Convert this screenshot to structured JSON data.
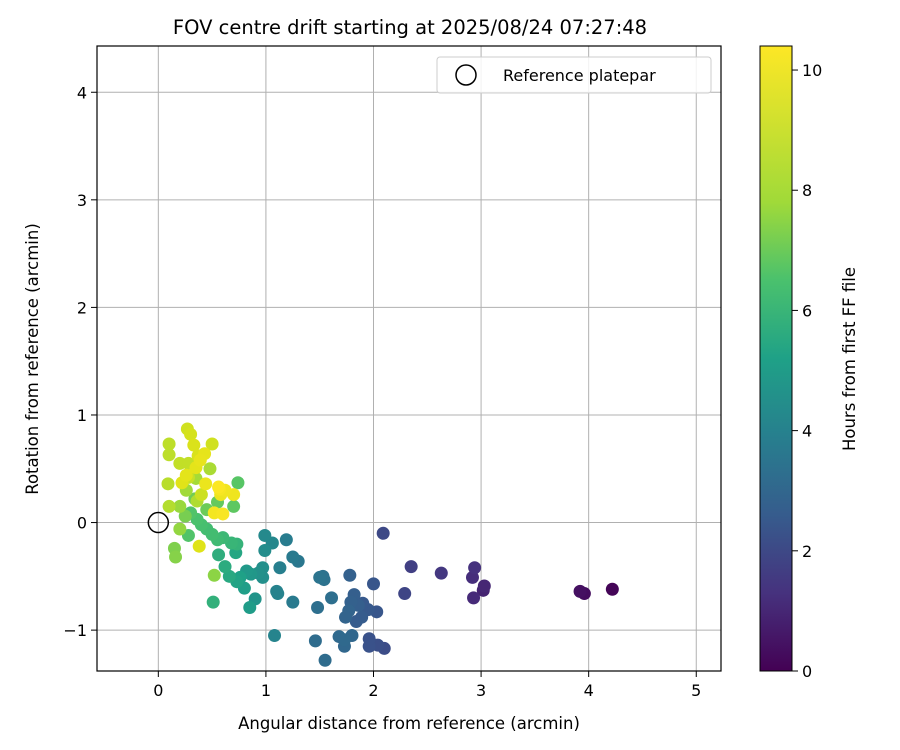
{
  "chart_data": {
    "type": "scatter",
    "title": "FOV centre drift starting at 2025/08/24 07:27:48",
    "xlabel": "Angular distance from reference (arcmin)",
    "ylabel": "Rotation from reference (arcmin)",
    "xlim": [
      -0.57,
      5.23
    ],
    "ylim": [
      -1.38,
      4.43
    ],
    "xticks": [
      0,
      1,
      2,
      3,
      4,
      5
    ],
    "yticks": [
      -1,
      0,
      1,
      2,
      3,
      4
    ],
    "xtick_labels": [
      "0",
      "1",
      "2",
      "3",
      "4",
      "5"
    ],
    "ytick_labels": [
      "−1",
      "0",
      "1",
      "2",
      "3",
      "4"
    ],
    "grid": true,
    "legend": {
      "label": "Reference platepar",
      "placement": "top-right",
      "marker": "open-circle"
    },
    "reference_point": {
      "x": 0,
      "y": 0
    },
    "colorbar": {
      "label": "Hours from first FF file",
      "range": [
        0,
        10.4
      ],
      "ticks": [
        0,
        2,
        4,
        6,
        8,
        10
      ],
      "tick_labels": [
        "0",
        "2",
        "4",
        "6",
        "8",
        "10"
      ],
      "colormap": "viridis"
    },
    "points": [
      {
        "x": 4.22,
        "y": -0.62,
        "c": 0.1
      },
      {
        "x": 3.96,
        "y": -0.66,
        "c": 0.3
      },
      {
        "x": 3.92,
        "y": -0.64,
        "c": 0.4
      },
      {
        "x": 3.02,
        "y": -0.63,
        "c": 0.9
      },
      {
        "x": 3.03,
        "y": -0.59,
        "c": 1.0
      },
      {
        "x": 2.93,
        "y": -0.7,
        "c": 1.1
      },
      {
        "x": 2.92,
        "y": -0.51,
        "c": 1.2
      },
      {
        "x": 2.94,
        "y": -0.42,
        "c": 1.3
      },
      {
        "x": 2.63,
        "y": -0.47,
        "c": 1.5
      },
      {
        "x": 2.35,
        "y": -0.41,
        "c": 1.7
      },
      {
        "x": 2.29,
        "y": -0.66,
        "c": 1.9
      },
      {
        "x": 2.09,
        "y": -0.1,
        "c": 2.0
      },
      {
        "x": 2.1,
        "y": -1.17,
        "c": 2.1
      },
      {
        "x": 2.04,
        "y": -1.14,
        "c": 2.2
      },
      {
        "x": 1.96,
        "y": -1.15,
        "c": 2.3
      },
      {
        "x": 1.96,
        "y": -1.08,
        "c": 2.3
      },
      {
        "x": 2.0,
        "y": -0.57,
        "c": 2.4
      },
      {
        "x": 2.03,
        "y": -0.83,
        "c": 2.4
      },
      {
        "x": 1.95,
        "y": -0.81,
        "c": 2.5
      },
      {
        "x": 1.9,
        "y": -0.75,
        "c": 2.5
      },
      {
        "x": 1.89,
        "y": -0.88,
        "c": 2.6
      },
      {
        "x": 1.84,
        "y": -0.92,
        "c": 2.6
      },
      {
        "x": 1.86,
        "y": -0.77,
        "c": 2.7
      },
      {
        "x": 1.82,
        "y": -0.67,
        "c": 2.7
      },
      {
        "x": 1.79,
        "y": -0.74,
        "c": 2.8
      },
      {
        "x": 1.78,
        "y": -0.49,
        "c": 2.8
      },
      {
        "x": 1.77,
        "y": -0.82,
        "c": 2.9
      },
      {
        "x": 1.74,
        "y": -0.88,
        "c": 2.9
      },
      {
        "x": 1.8,
        "y": -1.05,
        "c": 3.0
      },
      {
        "x": 1.73,
        "y": -1.15,
        "c": 3.0
      },
      {
        "x": 1.68,
        "y": -1.06,
        "c": 3.1
      },
      {
        "x": 1.73,
        "y": -1.09,
        "c": 3.1
      },
      {
        "x": 1.55,
        "y": -1.28,
        "c": 3.2
      },
      {
        "x": 1.46,
        "y": -1.1,
        "c": 3.2
      },
      {
        "x": 1.48,
        "y": -0.79,
        "c": 3.3
      },
      {
        "x": 1.61,
        "y": -0.7,
        "c": 3.3
      },
      {
        "x": 1.54,
        "y": -0.53,
        "c": 3.4
      },
      {
        "x": 1.53,
        "y": -0.5,
        "c": 3.4
      },
      {
        "x": 1.5,
        "y": -0.51,
        "c": 3.5
      },
      {
        "x": 1.3,
        "y": -0.36,
        "c": 3.6
      },
      {
        "x": 1.25,
        "y": -0.32,
        "c": 3.7
      },
      {
        "x": 1.25,
        "y": -0.74,
        "c": 3.7
      },
      {
        "x": 1.19,
        "y": -0.16,
        "c": 3.8
      },
      {
        "x": 1.13,
        "y": -0.42,
        "c": 3.9
      },
      {
        "x": 1.1,
        "y": -0.64,
        "c": 4.0
      },
      {
        "x": 1.11,
        "y": -0.66,
        "c": 4.0
      },
      {
        "x": 1.08,
        "y": -1.05,
        "c": 4.1
      },
      {
        "x": 1.06,
        "y": -0.19,
        "c": 4.2
      },
      {
        "x": 0.99,
        "y": -0.12,
        "c": 4.3
      },
      {
        "x": 0.99,
        "y": -0.26,
        "c": 4.4
      },
      {
        "x": 0.97,
        "y": -0.42,
        "c": 4.5
      },
      {
        "x": 0.97,
        "y": -0.51,
        "c": 4.5
      },
      {
        "x": 0.93,
        "y": -0.47,
        "c": 4.6
      },
      {
        "x": 0.9,
        "y": -0.71,
        "c": 4.7
      },
      {
        "x": 0.86,
        "y": -0.48,
        "c": 4.8
      },
      {
        "x": 0.82,
        "y": -0.45,
        "c": 4.9
      },
      {
        "x": 0.85,
        "y": -0.79,
        "c": 5.0
      },
      {
        "x": 0.8,
        "y": -0.61,
        "c": 5.1
      },
      {
        "x": 0.76,
        "y": -0.51,
        "c": 5.2
      },
      {
        "x": 0.73,
        "y": -0.55,
        "c": 5.3
      },
      {
        "x": 0.72,
        "y": -0.28,
        "c": 5.4
      },
      {
        "x": 0.66,
        "y": -0.5,
        "c": 5.5
      },
      {
        "x": 0.62,
        "y": -0.41,
        "c": 5.6
      },
      {
        "x": 0.56,
        "y": -0.3,
        "c": 5.7
      },
      {
        "x": 0.51,
        "y": -0.74,
        "c": 5.8
      },
      {
        "x": 0.73,
        "y": -0.2,
        "c": 5.9
      },
      {
        "x": 0.68,
        "y": -0.19,
        "c": 6.0
      },
      {
        "x": 0.6,
        "y": -0.14,
        "c": 6.1
      },
      {
        "x": 0.55,
        "y": -0.16,
        "c": 6.2
      },
      {
        "x": 0.5,
        "y": -0.11,
        "c": 6.3
      },
      {
        "x": 0.45,
        "y": -0.06,
        "c": 6.3
      },
      {
        "x": 0.4,
        "y": -0.02,
        "c": 6.4
      },
      {
        "x": 0.36,
        "y": 0.03,
        "c": 6.5
      },
      {
        "x": 0.3,
        "y": 0.09,
        "c": 6.6
      },
      {
        "x": 0.28,
        "y": -0.12,
        "c": 6.6
      },
      {
        "x": 0.74,
        "y": 0.37,
        "c": 6.7
      },
      {
        "x": 0.7,
        "y": 0.15,
        "c": 6.8
      },
      {
        "x": 0.55,
        "y": 0.19,
        "c": 6.9
      },
      {
        "x": 0.45,
        "y": 0.12,
        "c": 7.0
      },
      {
        "x": 0.34,
        "y": 0.22,
        "c": 7.1
      },
      {
        "x": 0.25,
        "y": 0.06,
        "c": 7.2
      },
      {
        "x": 0.15,
        "y": -0.24,
        "c": 7.3
      },
      {
        "x": 0.16,
        "y": -0.32,
        "c": 7.4
      },
      {
        "x": 0.52,
        "y": -0.49,
        "c": 7.5
      },
      {
        "x": 0.2,
        "y": -0.06,
        "c": 7.6
      },
      {
        "x": 0.2,
        "y": 0.15,
        "c": 7.7
      },
      {
        "x": 0.26,
        "y": 0.3,
        "c": 7.8
      },
      {
        "x": 0.35,
        "y": 0.41,
        "c": 7.9
      },
      {
        "x": 0.48,
        "y": 0.5,
        "c": 8.0
      },
      {
        "x": 0.36,
        "y": 0.2,
        "c": 8.1
      },
      {
        "x": 0.1,
        "y": 0.15,
        "c": 8.2
      },
      {
        "x": 0.09,
        "y": 0.36,
        "c": 8.3
      },
      {
        "x": 0.1,
        "y": 0.63,
        "c": 8.4
      },
      {
        "x": 0.1,
        "y": 0.73,
        "c": 8.4
      },
      {
        "x": 0.2,
        "y": 0.55,
        "c": 8.5
      },
      {
        "x": 0.28,
        "y": 0.55,
        "c": 8.5
      },
      {
        "x": 0.28,
        "y": 0.42,
        "c": 8.6
      },
      {
        "x": 0.4,
        "y": 0.26,
        "c": 8.7
      },
      {
        "x": 0.5,
        "y": 0.73,
        "c": 8.8
      },
      {
        "x": 0.27,
        "y": 0.87,
        "c": 8.8
      },
      {
        "x": 0.3,
        "y": 0.82,
        "c": 8.9
      },
      {
        "x": 0.33,
        "y": 0.72,
        "c": 9.0
      },
      {
        "x": 0.37,
        "y": 0.62,
        "c": 9.0
      },
      {
        "x": 0.38,
        "y": -0.22,
        "c": 9.1
      },
      {
        "x": 0.22,
        "y": 0.37,
        "c": 9.2
      },
      {
        "x": 0.26,
        "y": 0.44,
        "c": 9.3
      },
      {
        "x": 0.35,
        "y": 0.51,
        "c": 9.3
      },
      {
        "x": 0.43,
        "y": 0.64,
        "c": 9.4
      },
      {
        "x": 0.39,
        "y": 0.58,
        "c": 9.5
      },
      {
        "x": 0.44,
        "y": 0.36,
        "c": 9.6
      },
      {
        "x": 0.58,
        "y": 0.26,
        "c": 9.7
      },
      {
        "x": 0.7,
        "y": 0.26,
        "c": 9.8
      },
      {
        "x": 0.62,
        "y": 0.3,
        "c": 9.9
      },
      {
        "x": 0.52,
        "y": 0.09,
        "c": 10.0
      },
      {
        "x": 0.57,
        "y": 0.31,
        "c": 10.1
      },
      {
        "x": 0.6,
        "y": 0.08,
        "c": 10.2
      },
      {
        "x": 0.56,
        "y": 0.33,
        "c": 10.3
      }
    ]
  }
}
